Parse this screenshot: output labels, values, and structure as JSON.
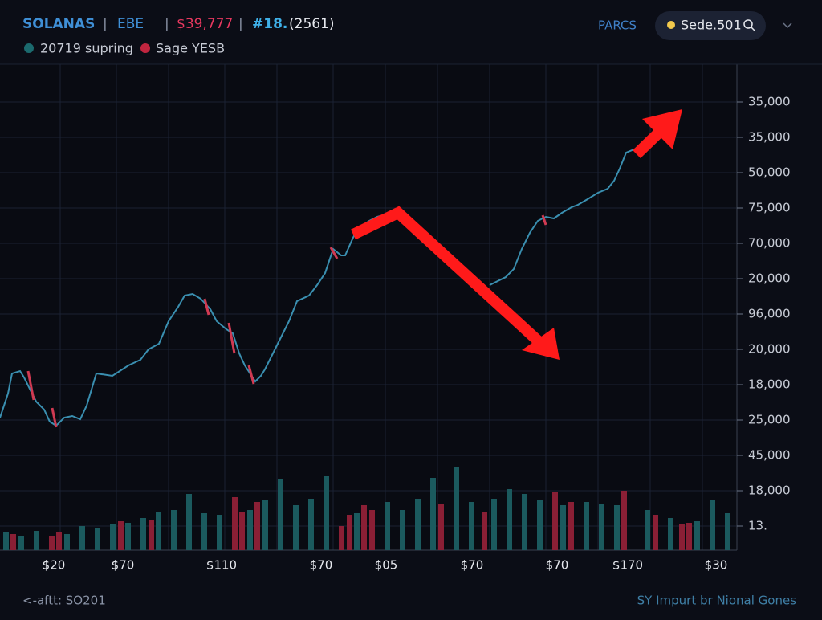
{
  "header": {
    "symbol": "SOLANAS",
    "pair": "EBE",
    "price": "$39,777",
    "rank": "#18.",
    "count": "(2561)",
    "menu": "PARCS",
    "search": "Sede.501"
  },
  "legend": [
    {
      "label": "20719 supring"
    },
    {
      "label": "Sage YESB"
    }
  ],
  "y_axis_labels": [
    "35,000",
    "35,000",
    "50,000",
    "75,000",
    "70,000",
    "20,000",
    "96,000",
    "20,000",
    "18,000",
    "25,000",
    "45,000",
    "18,000",
    "13."
  ],
  "x_axis_labels": [
    "$20",
    "$70",
    "$110",
    "$70",
    "$05",
    "$70",
    "$70",
    "$170",
    "$30"
  ],
  "footer": {
    "left": "<-aftt: SO201",
    "right": "SY Impurt br Nional Gones"
  }
}
